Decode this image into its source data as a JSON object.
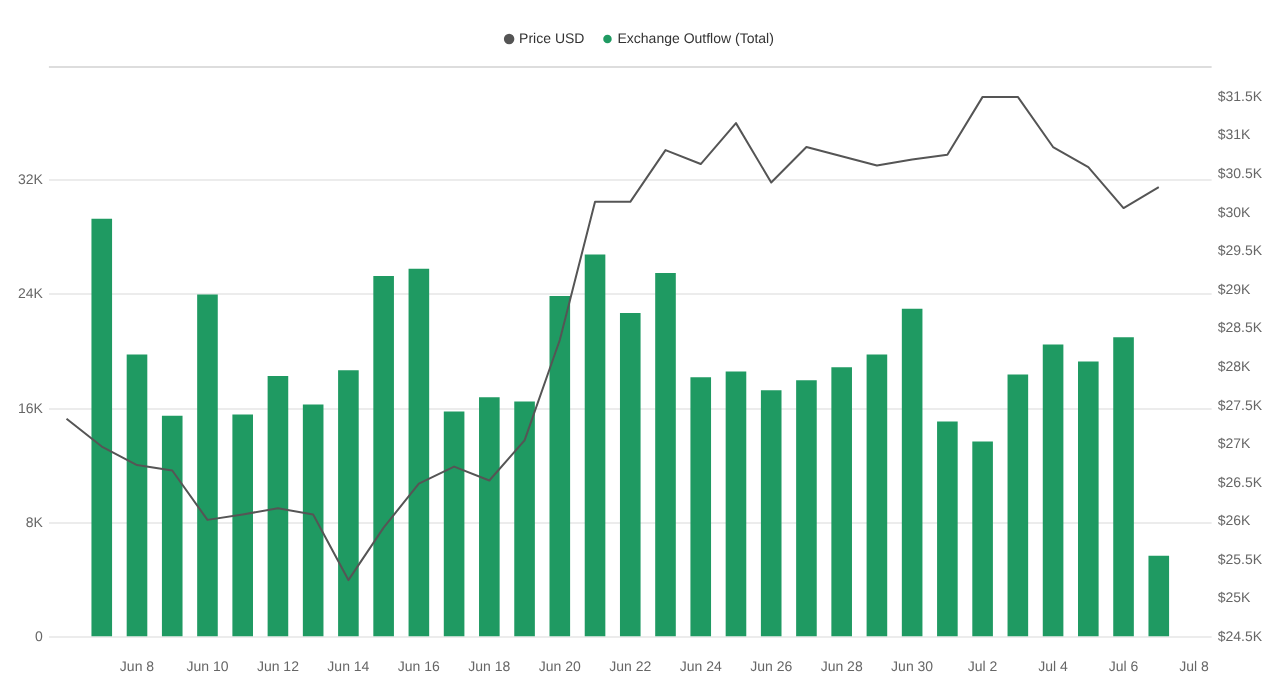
{
  "chart_data": {
    "type": "bar",
    "categories": [
      null,
      null,
      "Jun 8",
      null,
      "Jun 10",
      null,
      "Jun 12",
      null,
      "Jun 14",
      null,
      "Jun 16",
      null,
      "Jun 18",
      null,
      "Jun 20",
      null,
      "Jun 22",
      null,
      "Jun 24",
      null,
      "Jun 26",
      null,
      "Jun 28",
      null,
      "Jun 30",
      null,
      "Jul 2",
      null,
      "Jul 4",
      null,
      "Jul 6",
      null,
      "Jul 8"
    ],
    "series": [
      {
        "name": "Price USD",
        "type": "line",
        "axis": "y2",
        "color": "#555555",
        "values": [
          27330,
          26970,
          26730,
          26660,
          26020,
          26090,
          26170,
          26090,
          25240,
          25920,
          26490,
          26710,
          26530,
          27050,
          28350,
          30140,
          30140,
          30810,
          30630,
          31160,
          30390,
          30850,
          30730,
          30610,
          30690,
          30750,
          31500,
          31500,
          30850,
          30590,
          30060,
          30330,
          null
        ]
      },
      {
        "name": "Exchange Outflow (Total)",
        "axis": "y",
        "color": "#1f9a62",
        "values": [
          null,
          29300,
          19800,
          15500,
          24000,
          15600,
          18300,
          16300,
          18700,
          25300,
          25800,
          15800,
          16800,
          16500,
          23900,
          26800,
          22700,
          25500,
          18200,
          18600,
          17300,
          18000,
          18900,
          19800,
          23000,
          15100,
          13700,
          18400,
          20500,
          19300,
          21000,
          5700,
          null
        ]
      }
    ],
    "ylim": [
      0,
      40000
    ],
    "yticks": [
      0,
      {
        "value": 8000,
        "label": "8K"
      },
      {
        "value": 16000,
        "label": "16K"
      },
      {
        "value": 24000,
        "label": "24K"
      },
      {
        "value": 32000,
        "label": "32K"
      }
    ],
    "y2lim": [
      24500,
      31900
    ],
    "y2ticks": [
      {
        "value": 24500,
        "label": "$24.5K"
      },
      {
        "value": 25000,
        "label": "$25K"
      },
      {
        "value": 25500,
        "label": "$25.5K"
      },
      {
        "value": 26000,
        "label": "$26K"
      },
      {
        "value": 26500,
        "label": "$26.5K"
      },
      {
        "value": 27000,
        "label": "$27K"
      },
      {
        "value": 27500,
        "label": "$27.5K"
      },
      {
        "value": 28000,
        "label": "$28K"
      },
      {
        "value": 28500,
        "label": "$28.5K"
      },
      {
        "value": 29000,
        "label": "$29K"
      },
      {
        "value": 29500,
        "label": "$29.5K"
      },
      {
        "value": 30000,
        "label": "$30K"
      },
      {
        "value": 30500,
        "label": "$30.5K"
      },
      {
        "value": 31000,
        "label": "$31K"
      },
      {
        "value": 31500,
        "label": "$31.5K"
      }
    ],
    "grid": "y",
    "legend": "top",
    "marker": "none"
  }
}
